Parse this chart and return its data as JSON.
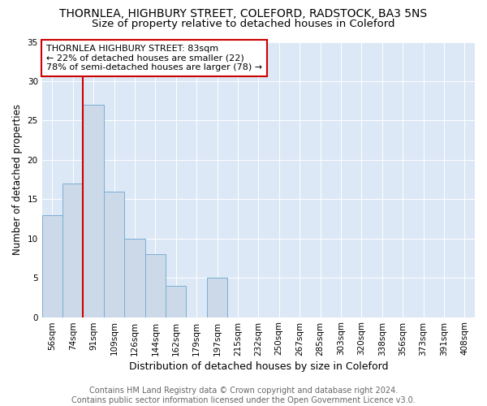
{
  "title": "THORNLEA, HIGHBURY STREET, COLEFORD, RADSTOCK, BA3 5NS",
  "subtitle": "Size of property relative to detached houses in Coleford",
  "xlabel": "Distribution of detached houses by size in Coleford",
  "ylabel": "Number of detached properties",
  "bin_labels": [
    "56sqm",
    "74sqm",
    "91sqm",
    "109sqm",
    "126sqm",
    "144sqm",
    "162sqm",
    "179sqm",
    "197sqm",
    "215sqm",
    "232sqm",
    "250sqm",
    "267sqm",
    "285sqm",
    "303sqm",
    "320sqm",
    "338sqm",
    "356sqm",
    "373sqm",
    "391sqm",
    "408sqm"
  ],
  "bar_heights": [
    13,
    17,
    27,
    16,
    10,
    8,
    4,
    0,
    5,
    0,
    0,
    0,
    0,
    0,
    0,
    0,
    0,
    0,
    0,
    0,
    0
  ],
  "bar_color": "#ccd9e8",
  "bar_edge_color": "#7aafd4",
  "vline_color": "#cc0000",
  "annotation_text": "THORNLEA HIGHBURY STREET: 83sqm\n← 22% of detached houses are smaller (22)\n78% of semi-detached houses are larger (78) →",
  "annotation_box_color": "#ffffff",
  "annotation_box_edge": "#cc0000",
  "ylim": [
    0,
    35
  ],
  "yticks": [
    0,
    5,
    10,
    15,
    20,
    25,
    30,
    35
  ],
  "background_color": "#dce8f5",
  "footer_text": "Contains HM Land Registry data © Crown copyright and database right 2024.\nContains public sector information licensed under the Open Government Licence v3.0.",
  "title_fontsize": 10,
  "subtitle_fontsize": 9.5,
  "xlabel_fontsize": 9,
  "ylabel_fontsize": 8.5,
  "tick_fontsize": 7.5,
  "annotation_fontsize": 8,
  "footer_fontsize": 7
}
